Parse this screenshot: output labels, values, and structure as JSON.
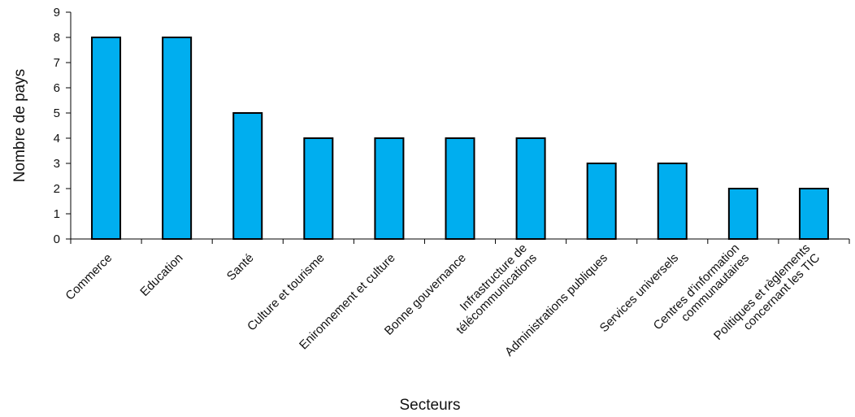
{
  "chart_data": {
    "type": "bar",
    "title": "",
    "xlabel": "Secteurs",
    "ylabel": "Nombre de pays",
    "ylim": [
      0,
      9
    ],
    "yticks": [
      0,
      1,
      2,
      3,
      4,
      5,
      6,
      7,
      8,
      9
    ],
    "grid": false,
    "bar_color": "#00aeef",
    "bar_edge_color": "#000000",
    "categories": [
      [
        "Commerce"
      ],
      [
        "Education"
      ],
      [
        "Santé"
      ],
      [
        "Culture et tourisme"
      ],
      [
        "Enironnement et culture"
      ],
      [
        "Bonne gouvernance"
      ],
      [
        "Infrastructure de",
        "télécommunications"
      ],
      [
        "Administrations publiques"
      ],
      [
        "Services universels"
      ],
      [
        "Centres d'information",
        "communautaires"
      ],
      [
        "Politiques et règlements",
        "concernant les TIC"
      ]
    ],
    "values": [
      8,
      8,
      5,
      4,
      4,
      4,
      4,
      3,
      3,
      2,
      2
    ]
  }
}
